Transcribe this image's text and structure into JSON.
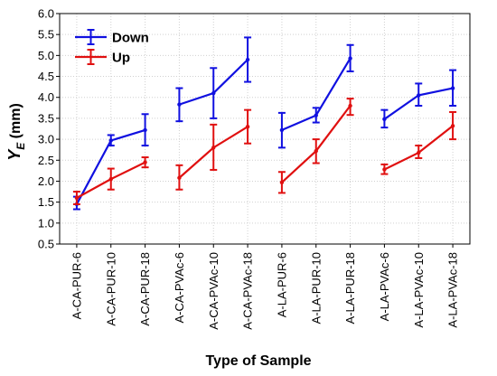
{
  "chart_data": {
    "type": "line",
    "xlabel": "Type of Sample",
    "ylabel": {
      "main": "Y",
      "sub": "E",
      "unit": " (mm)"
    },
    "ylim": [
      0.5,
      6.0
    ],
    "yticks": [
      "0.5",
      "1.0",
      "1.5",
      "2.0",
      "2.5",
      "3.0",
      "3.5",
      "4.0",
      "4.5",
      "5.0",
      "5.5",
      "6.0"
    ],
    "grid": true,
    "legend_position": "top-left",
    "categories": [
      "A-CA-PUR-6",
      "A-CA-PUR-10",
      "A-CA-PUR-18",
      "A-CA-PVAc-6",
      "A-CA-PVAc-10",
      "A-CA-PVAc-18",
      "A-LA-PUR-6",
      "A-LA-PUR-10",
      "A-LA-PUR-18",
      "A-LA-PVAc-6",
      "A-LA-PVAc-10",
      "A-LA-PVAc-18"
    ],
    "groups": [
      [
        0,
        1,
        2
      ],
      [
        3,
        4,
        5
      ],
      [
        6,
        7,
        8
      ],
      [
        9,
        10,
        11
      ]
    ],
    "series": [
      {
        "name": "Down",
        "color": "#1010e0",
        "values": [
          1.45,
          2.97,
          3.22,
          3.83,
          4.1,
          4.9,
          3.22,
          3.57,
          4.93,
          3.48,
          4.05,
          4.22
        ],
        "lower": [
          1.33,
          2.85,
          2.85,
          3.43,
          3.5,
          4.37,
          2.8,
          3.4,
          4.62,
          3.28,
          3.8,
          3.8
        ],
        "upper": [
          1.63,
          3.1,
          3.6,
          4.22,
          4.7,
          5.43,
          3.63,
          3.75,
          5.25,
          3.7,
          4.33,
          4.65
        ]
      },
      {
        "name": "Up",
        "color": "#e01010",
        "values": [
          1.6,
          2.05,
          2.45,
          2.08,
          2.8,
          3.3,
          1.97,
          2.72,
          3.8,
          2.28,
          2.68,
          3.32
        ],
        "lower": [
          1.45,
          1.8,
          2.33,
          1.8,
          2.27,
          2.9,
          1.72,
          2.43,
          3.58,
          2.17,
          2.55,
          3.0
        ],
        "upper": [
          1.75,
          2.3,
          2.57,
          2.38,
          3.35,
          3.7,
          2.22,
          3.0,
          3.97,
          2.4,
          2.85,
          3.65
        ]
      }
    ]
  }
}
